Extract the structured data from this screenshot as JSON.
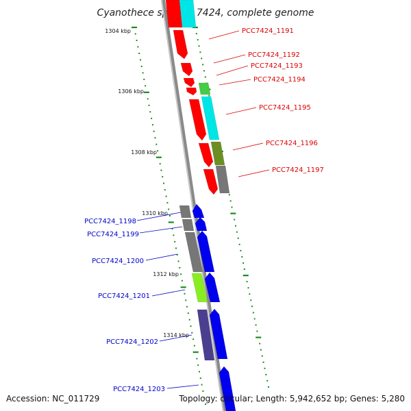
{
  "title": "Cyanothece sp. PCC 7424, complete genome",
  "footer": {
    "accession": "Accession: NC_011729",
    "topology": "Topology: circular; Length: 5,942,652 bp; Genes: 5,280"
  },
  "scale_labels": [
    "1304 kbp",
    "1306 kbp",
    "1308 kbp",
    "1310 kbp",
    "1312 kbp",
    "1314 kbp"
  ],
  "colors": {
    "backbone": "#8a8a8a",
    "tick": "#1a8a1a",
    "label_red": "#dd0000",
    "label_blue": "#0000cc"
  },
  "genes_top": [
    {
      "label": "PCC7424_1191",
      "color": "#dd0000"
    },
    {
      "label": "PCC7424_1192",
      "color": "#dd0000"
    },
    {
      "label": "PCC7424_1193",
      "color": "#dd0000"
    },
    {
      "label": "PCC7424_1194",
      "color": "#dd0000"
    },
    {
      "label": "PCC7424_1195",
      "color": "#dd0000"
    },
    {
      "label": "PCC7424_1196",
      "color": "#dd0000"
    },
    {
      "label": "PCC7424_1197",
      "color": "#dd0000"
    }
  ],
  "genes_bottom": [
    {
      "label": "PCC7424_1198",
      "color": "#0000cc"
    },
    {
      "label": "PCC7424_1199",
      "color": "#0000cc"
    },
    {
      "label": "PCC7424_1200",
      "color": "#0000cc"
    },
    {
      "label": "PCC7424_1201",
      "color": "#0000cc"
    },
    {
      "label": "PCC7424_1202",
      "color": "#0000cc"
    },
    {
      "label": "PCC7424_1203",
      "color": "#0000cc"
    }
  ],
  "gene_colors": {
    "red": "#ff0000",
    "cyan": "#00e5e5",
    "green": "#44cc44",
    "olive": "#6b8e23",
    "gray": "#777777",
    "blue": "#0000ee",
    "lime": "#88ee22",
    "slate": "#4a3f8f"
  }
}
